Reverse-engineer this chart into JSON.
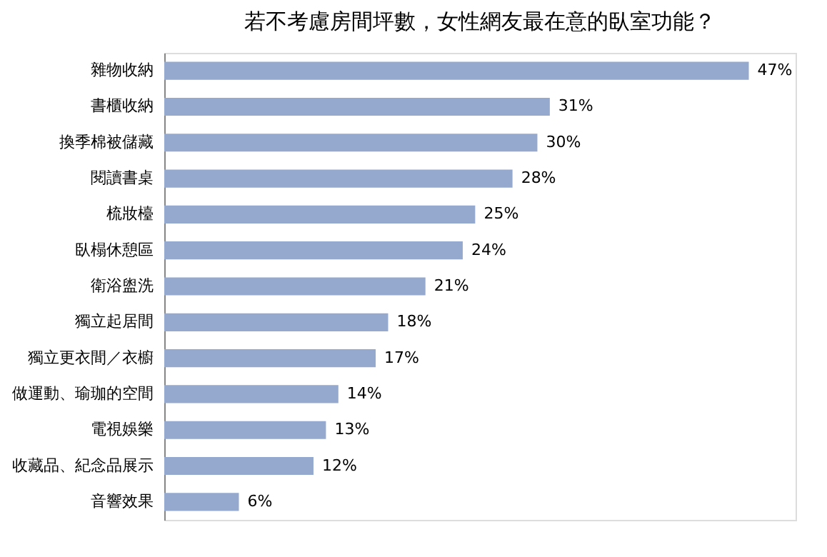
{
  "chart_data": {
    "type": "bar",
    "orientation": "horizontal",
    "title": "若不考慮房間坪數，女性網友最在意的臥室功能？",
    "categories": [
      "雜物收納",
      "書櫃收納",
      "換季棉被儲藏",
      "閱讀書桌",
      "梳妝檯",
      "臥榻休憩區",
      "衛浴盥洗",
      "獨立起居間",
      "獨立更衣間／衣櫥",
      "做運動、瑜珈的空間",
      "電視娛樂",
      "收藏品、紀念品展示",
      "音響效果"
    ],
    "values": [
      47,
      31,
      30,
      28,
      25,
      24,
      21,
      18,
      17,
      14,
      13,
      12,
      6
    ],
    "value_labels": [
      "47%",
      "31%",
      "30%",
      "28%",
      "25%",
      "24%",
      "21%",
      "18%",
      "17%",
      "14%",
      "13%",
      "12%",
      "6%"
    ],
    "color": "#95a9cf",
    "tick_labels": "y"
  }
}
